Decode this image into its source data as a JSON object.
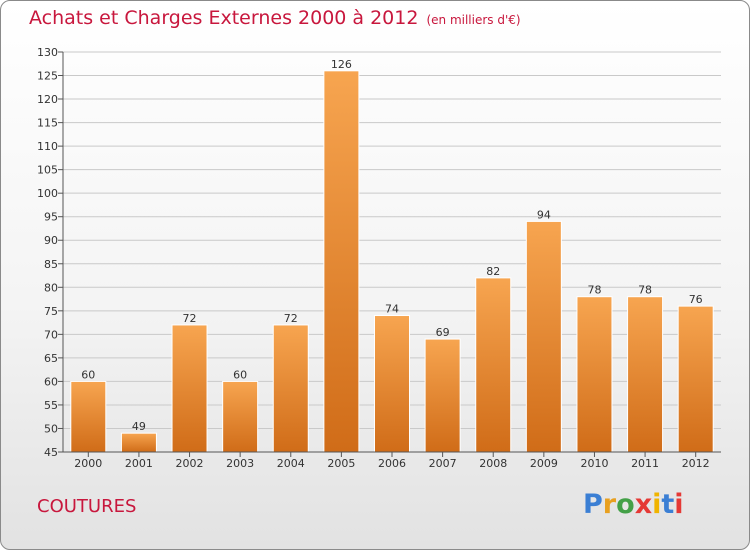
{
  "title": "Achats et Charges Externes 2000 à 2012",
  "title_unit": "(en milliers d'€)",
  "commune": "COUTURES",
  "logo": {
    "letters": [
      "P",
      "r",
      "o",
      "x",
      "i",
      "t",
      "i"
    ],
    "colors": [
      "#3b7fd4",
      "#e8a020",
      "#43a047",
      "#e53935",
      "#f0b400",
      "#3b7fd4",
      "#e53935"
    ]
  },
  "colors": {
    "accent": "#c8173d",
    "bar_top": "#f7a550",
    "bar_bottom": "#d06c18"
  },
  "chart_data": {
    "type": "bar",
    "categories": [
      "2000",
      "2001",
      "2002",
      "2003",
      "2004",
      "2005",
      "2006",
      "2007",
      "2008",
      "2009",
      "2010",
      "2011",
      "2012"
    ],
    "values": [
      60,
      49,
      72,
      60,
      72,
      126,
      74,
      69,
      82,
      94,
      78,
      78,
      76
    ],
    "ylim": [
      45,
      130
    ],
    "yticks": [
      45,
      50,
      55,
      60,
      65,
      70,
      75,
      80,
      85,
      90,
      95,
      100,
      105,
      110,
      115,
      120,
      125,
      130
    ],
    "grid": true,
    "xlabel": "",
    "ylabel": ""
  }
}
